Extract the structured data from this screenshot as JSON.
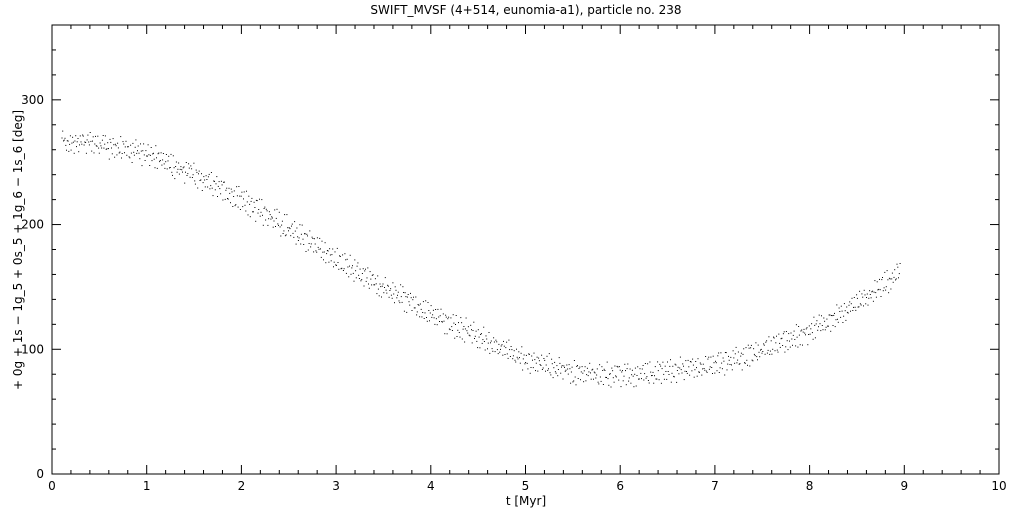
{
  "chart_data": {
    "type": "scatter",
    "title": "SWIFT_MVSF (4+514, eunomia-a1), particle no. 238",
    "xlabel": "t [Myr]",
    "ylabel": "+ 0g + 1s − 1g_5 + 0s_5 + 1g_6 − 1s_6 [deg]",
    "xlim": [
      0,
      10
    ],
    "ylim": [
      0,
      360
    ],
    "x_ticks": [
      "0",
      "1",
      "2",
      "3",
      "4",
      "5",
      "6",
      "7",
      "8",
      "9",
      "10"
    ],
    "y_ticks": [
      "0",
      "100",
      "200",
      "300"
    ],
    "grid": false,
    "point_color": "#000000",
    "x_range_of_points": [
      0.1,
      8.95
    ],
    "trend": {
      "x": [
        0.1,
        0.5,
        1.0,
        1.5,
        2.0,
        2.5,
        3.0,
        3.5,
        4.0,
        4.5,
        5.0,
        5.5,
        6.0,
        6.5,
        7.0,
        7.5,
        8.0,
        8.5,
        8.95
      ],
      "y": [
        268,
        265,
        257,
        240,
        220,
        197,
        172,
        150,
        128,
        110,
        92,
        82,
        80,
        82,
        88,
        99,
        115,
        137,
        162
      ]
    },
    "scatter_amplitude_deg": 9
  }
}
